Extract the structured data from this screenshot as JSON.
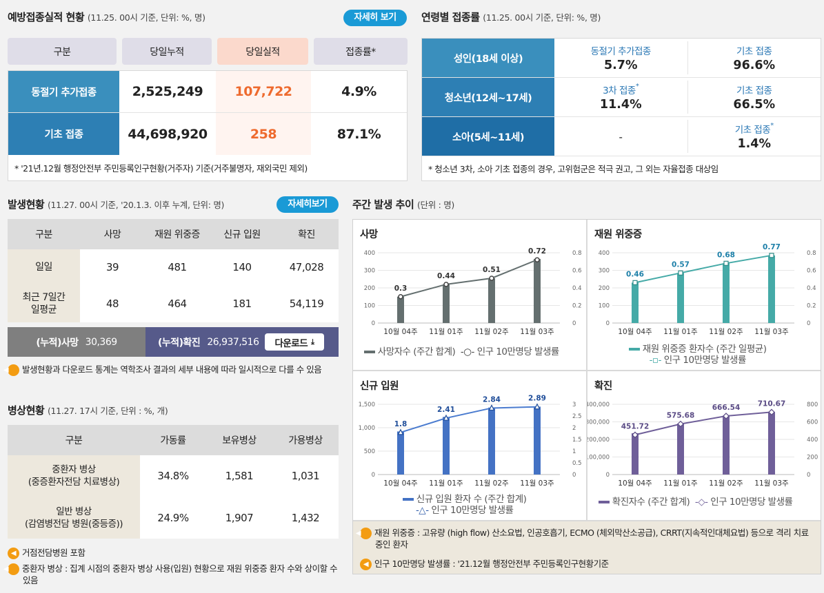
{
  "vaccination": {
    "title": "예방접종실적 현황",
    "subtitle": "(11.25. 00시 기준, 단위: %, 명)",
    "detail_button": "자세히 보기",
    "headers": [
      "구분",
      "당일누적",
      "당일실적",
      "접종률*"
    ],
    "rows": [
      {
        "label": "동절기 추가접종",
        "cumulative": "2,525,249",
        "daily": "107,722",
        "rate": "4.9%"
      },
      {
        "label": "기초 접종",
        "cumulative": "44,698,920",
        "daily": "258",
        "rate": "87.1%"
      }
    ],
    "note": "* '21년.12월 행정안전부 주민등록인구현황(거주자) 기준(거주불명자, 재외국민 제외)"
  },
  "age_rate": {
    "title": "연령별 접종률",
    "subtitle": "(11.25. 00시 기준, 단위: %, 명)",
    "rows": [
      {
        "label": "성인(18세 이상)",
        "c1_title": "동절기 추가접종",
        "c1_value": "5.7%",
        "c2_title": "기초 접종",
        "c2_value": "96.6%"
      },
      {
        "label": "청소년(12세~17세)",
        "c1_title": "3차 접종",
        "c1_value": "11.4%",
        "c2_title": "기초 접종",
        "c2_value": "66.5%"
      },
      {
        "label": "소아(5세~11세)",
        "c1_title": "",
        "c1_value": "-",
        "c2_title": "기초 접종",
        "c2_value": "1.4%"
      }
    ],
    "star": "*",
    "note": "* 청소년 3차, 소아 기초 접종의 경우, 고위험군은 적극 권고, 그 외는 자율접종 대상임"
  },
  "occurrence": {
    "title": "발생현황",
    "subtitle": "(11.27. 00시 기준, '20.1.3. 이후 누계, 단위: 명)",
    "detail_button": "자세히보기",
    "headers": [
      "구분",
      "사망",
      "재원 위중증",
      "신규 입원",
      "확진"
    ],
    "rows": [
      {
        "label": "일일",
        "v": [
          "39",
          "481",
          "140",
          "47,028"
        ]
      },
      {
        "label": "최근 7일간\n일평균",
        "v": [
          "48",
          "464",
          "181",
          "54,119"
        ]
      }
    ],
    "cum_death_label": "(누적)사망",
    "cum_death_value": "30,369",
    "cum_confirm_label": "(누적)확진",
    "cum_confirm_value": "26,937,516",
    "download_label": "다운로드",
    "note": "발생현황과 다운로드 통계는 역학조사 결과의 세부 내용에 따라 일시적으로 다를 수 있음"
  },
  "beds": {
    "title": "병상현황",
    "subtitle": "(11.27. 17시 기준, 단위 : %, 개)",
    "headers": [
      "구분",
      "가동률",
      "보유병상",
      "가용병상"
    ],
    "rows": [
      {
        "label": "중환자 병상\n(중증환자전담 치료병상)",
        "v": [
          "34.8%",
          "1,581",
          "1,031"
        ]
      },
      {
        "label": "일반 병상\n(감염병전담 병원(중등증))",
        "v": [
          "24.9%",
          "1,907",
          "1,432"
        ]
      }
    ],
    "notes": [
      "거점전담병원 포함",
      "중환자 병상 : 집계 시점의 중환자 병상 사용(입원) 현황으로 재원 위중증 환자 수와 상이할 수 있음"
    ]
  },
  "weekly": {
    "title": "주간 발생 추이",
    "subtitle": "(단위 : 명)",
    "categories": [
      "10월 04주",
      "11월 01주",
      "11월 02주",
      "11월 03주"
    ],
    "notes": [
      "재원 위중증 : 고유량 (high flow) 산소요법, 인공호흡기, ECMO (체외막산소공급), CRRT(지속적인대체요법) 등으로 격리 치료 중인 환자",
      "인구 10만명당 발생률 : '21.12월 행정안전부 주민등록인구현황기준"
    ]
  },
  "chart_data": [
    {
      "type": "bar",
      "title": "사망",
      "categories": [
        "10월 04주",
        "11월 01주",
        "11월 02주",
        "11월 03주"
      ],
      "series": [
        {
          "name": "사망자수 (주간 합계)",
          "values": [
            150,
            220,
            255,
            365
          ],
          "axis": "left"
        },
        {
          "name": "인구 10만명당 발생률",
          "values": [
            0.3,
            0.44,
            0.51,
            0.72
          ],
          "axis": "right",
          "kind": "line"
        }
      ],
      "ylim": [
        0,
        400
      ],
      "y2lim": [
        0,
        0.8
      ],
      "yticks": [
        "0",
        "100",
        "200",
        "300",
        "400"
      ],
      "y2ticks": [
        "0",
        "0.2",
        "0.4",
        "0.6",
        "0.8"
      ],
      "color": "#646f6f",
      "line_labels": [
        "0.3",
        "0.44",
        "0.51",
        "0.72"
      ]
    },
    {
      "type": "bar",
      "title": "재원 위중증",
      "categories": [
        "10월 04주",
        "11월 01주",
        "11월 02주",
        "11월 03주"
      ],
      "series": [
        {
          "name": "재원 위중증 환자수 (주간 일평균)",
          "values": [
            230,
            285,
            340,
            385
          ],
          "axis": "left"
        },
        {
          "name": "인구 10만명당 발생률",
          "values": [
            0.46,
            0.57,
            0.68,
            0.77
          ],
          "axis": "right",
          "kind": "line"
        }
      ],
      "ylim": [
        0,
        400
      ],
      "y2lim": [
        0,
        0.8
      ],
      "yticks": [
        "0",
        "100",
        "200",
        "300",
        "400"
      ],
      "y2ticks": [
        "0",
        "0.2",
        "0.4",
        "0.6",
        "0.8"
      ],
      "color": "#45aaa7",
      "line_labels": [
        "0.46",
        "0.57",
        "0.68",
        "0.77"
      ]
    },
    {
      "type": "bar",
      "title": "신규 입원",
      "categories": [
        "10월 04주",
        "11월 01주",
        "11월 02주",
        "11월 03주"
      ],
      "series": [
        {
          "name": "신규 입원 환자 수 (주간 합계)",
          "values": [
            920,
            1230,
            1430,
            1450
          ],
          "axis": "left"
        },
        {
          "name": "인구 10만명당 발생률",
          "values": [
            1.8,
            2.41,
            2.84,
            2.89
          ],
          "axis": "right",
          "kind": "line"
        }
      ],
      "ylim": [
        0,
        1500
      ],
      "y2lim": [
        0,
        3
      ],
      "yticks": [
        "0",
        "500",
        "1,000",
        "1,500"
      ],
      "y2ticks": [
        "0",
        "0.5",
        "1",
        "1.5",
        "2",
        "2.5",
        "3"
      ],
      "color": "#4472c4",
      "line_labels": [
        "1.8",
        "2.41",
        "2.84",
        "2.89"
      ]
    },
    {
      "type": "bar",
      "title": "확진",
      "categories": [
        "10월 04주",
        "11월 01주",
        "11월 02주",
        "11월 03주"
      ],
      "series": [
        {
          "name": "확진자수 (주간 합계)",
          "values": [
            235000,
            290000,
            335000,
            355000
          ],
          "axis": "left"
        },
        {
          "name": "인구 10만명당 발생률",
          "values": [
            451.72,
            575.68,
            666.54,
            710.67
          ],
          "axis": "right",
          "kind": "line"
        }
      ],
      "ylim": [
        0,
        400000
      ],
      "y2lim": [
        0,
        800
      ],
      "yticks": [
        "0",
        "100,000",
        "200,000",
        "300,000",
        "400,000"
      ],
      "y2ticks": [
        "0",
        "200",
        "400",
        "600",
        "800"
      ],
      "color": "#6f5f99",
      "line_labels": [
        "451.72",
        "575.68",
        "666.54",
        "710.67"
      ]
    }
  ]
}
